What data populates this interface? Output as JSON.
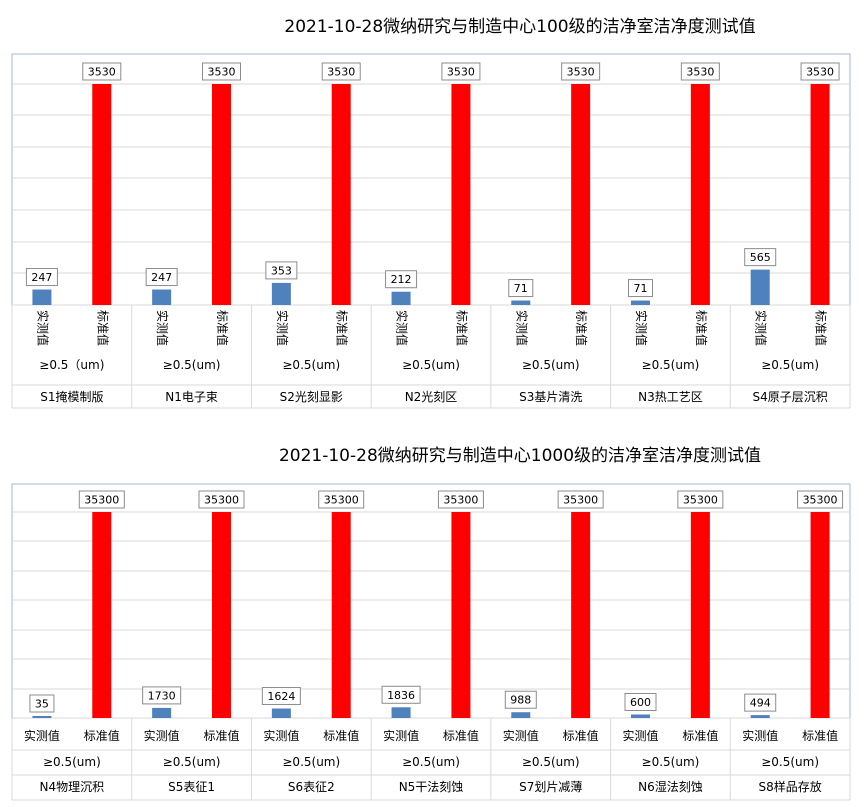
{
  "chart_data": [
    {
      "type": "bar",
      "title": "2021-10-28微纳研究与制造中心100级的洁净室洁净度测试值",
      "series": [
        {
          "name": "实测值",
          "color": "#4f81bd"
        },
        {
          "name": "标准值",
          "color": "#ff0000"
        }
      ],
      "size_label": "≥0.5(um)",
      "size_label_first": "≥0.5（um)",
      "groups": [
        {
          "location": "S1掩模制版",
          "actual": 247,
          "standard": 3530
        },
        {
          "location": "N1电子束",
          "actual": 247,
          "standard": 3530
        },
        {
          "location": "S2光刻显影",
          "actual": 353,
          "standard": 3530
        },
        {
          "location": "N2光刻区",
          "actual": 212,
          "standard": 3530
        },
        {
          "location": "S3基片清洗",
          "actual": 71,
          "standard": 3530
        },
        {
          "location": "N3热工艺区",
          "actual": 71,
          "standard": 3530
        },
        {
          "location": "S4原子层沉积",
          "actual": 565,
          "standard": 3530
        }
      ],
      "ylim": [
        0,
        3530
      ],
      "grid": true,
      "legend": "none"
    },
    {
      "type": "bar",
      "title": "2021-10-28微纳研究与制造中心1000级的洁净室洁净度测试值",
      "series": [
        {
          "name": "实测值",
          "color": "#4f81bd"
        },
        {
          "name": "标准值",
          "color": "#ff0000"
        }
      ],
      "size_label": "≥0.5(um)",
      "size_label_first": "≥0.5(um)",
      "groups": [
        {
          "location": "N4物理沉积",
          "actual": 35,
          "standard": 35300
        },
        {
          "location": "S5表征1",
          "actual": 1730,
          "standard": 35300
        },
        {
          "location": "S6表征2",
          "actual": 1624,
          "standard": 35300
        },
        {
          "location": "N5干法刻蚀",
          "actual": 1836,
          "standard": 35300
        },
        {
          "location": "S7划片减薄",
          "actual": 988,
          "standard": 35300
        },
        {
          "location": "N6湿法刻蚀",
          "actual": 600,
          "standard": 35300
        },
        {
          "location": "S8样品存放",
          "actual": 494,
          "standard": 35300
        }
      ],
      "ylim": [
        0,
        35300
      ],
      "grid": true,
      "legend": "none"
    }
  ]
}
